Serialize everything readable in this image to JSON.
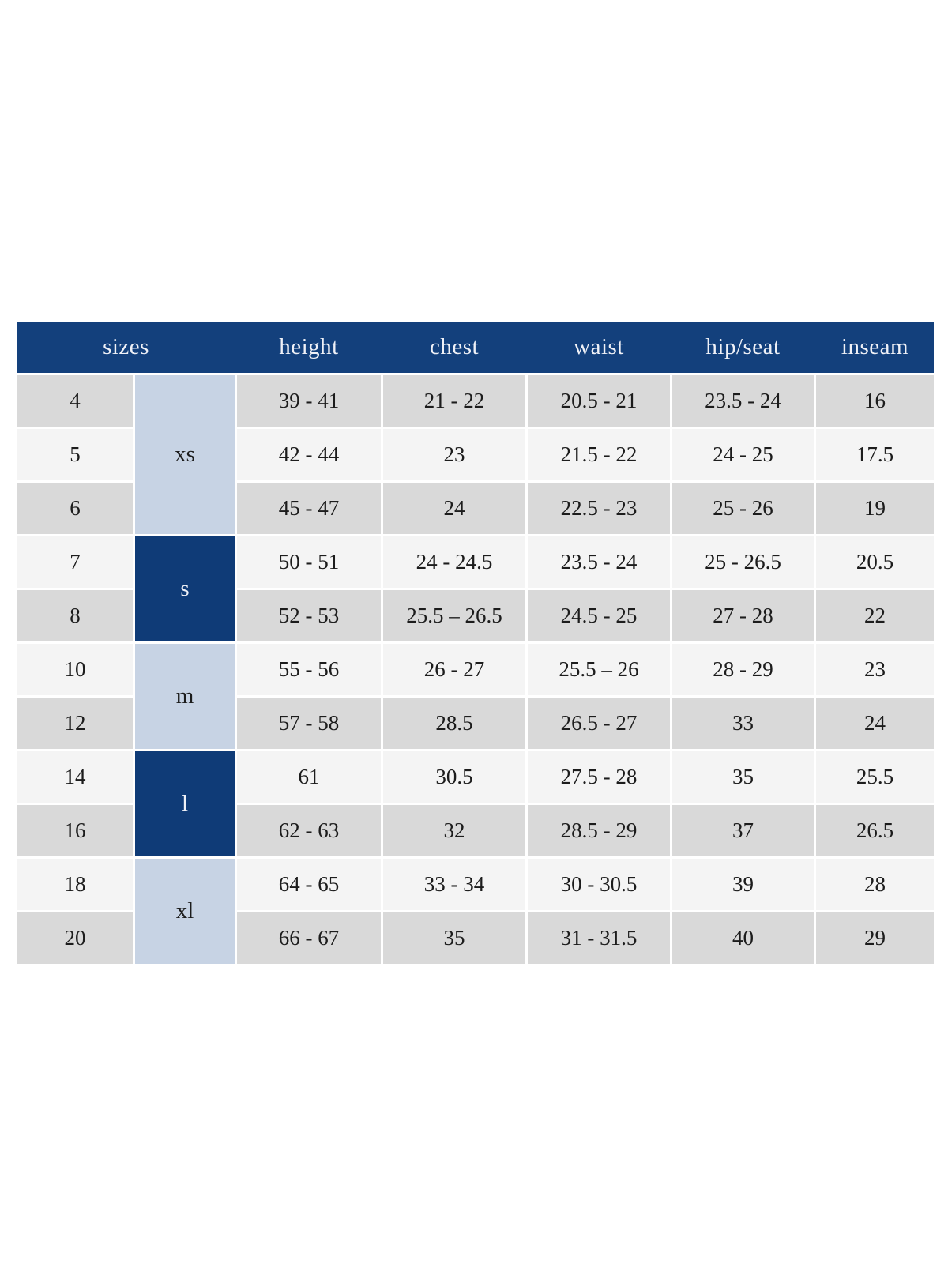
{
  "chart_data": {
    "type": "table",
    "title": "",
    "header": [
      "sizes",
      "height",
      "chest",
      "waist",
      "hip/seat",
      "inseam"
    ],
    "groups": [
      {
        "label": "xs",
        "span": 3,
        "variant": "light"
      },
      {
        "label": "s",
        "span": 2,
        "variant": "dark"
      },
      {
        "label": "m",
        "span": 2,
        "variant": "light"
      },
      {
        "label": "l",
        "span": 2,
        "variant": "dark"
      },
      {
        "label": "xl",
        "span": 2,
        "variant": "light"
      }
    ],
    "rows": [
      {
        "size": "4",
        "group": "xs",
        "height": "39 - 41",
        "chest": "21 - 22",
        "waist": "20.5 - 21",
        "hip_seat": "23.5 - 24",
        "inseam": "16"
      },
      {
        "size": "5",
        "group": "xs",
        "height": "42 - 44",
        "chest": "23",
        "waist": "21.5 - 22",
        "hip_seat": "24 - 25",
        "inseam": "17.5"
      },
      {
        "size": "6",
        "group": "xs",
        "height": "45 - 47",
        "chest": "24",
        "waist": "22.5 - 23",
        "hip_seat": "25 - 26",
        "inseam": "19"
      },
      {
        "size": "7",
        "group": "s",
        "height": "50 - 51",
        "chest": "24 - 24.5",
        "waist": "23.5 - 24",
        "hip_seat": "25 - 26.5",
        "inseam": "20.5"
      },
      {
        "size": "8",
        "group": "s",
        "height": "52 - 53",
        "chest": "25.5 – 26.5",
        "waist": "24.5 - 25",
        "hip_seat": "27 - 28",
        "inseam": "22"
      },
      {
        "size": "10",
        "group": "m",
        "height": "55 - 56",
        "chest": "26 - 27",
        "waist": "25.5 – 26",
        "hip_seat": "28 - 29",
        "inseam": "23"
      },
      {
        "size": "12",
        "group": "m",
        "height": "57 - 58",
        "chest": "28.5",
        "waist": "26.5 - 27",
        "hip_seat": "33",
        "inseam": "24"
      },
      {
        "size": "14",
        "group": "l",
        "height": "61",
        "chest": "30.5",
        "waist": "27.5 - 28",
        "hip_seat": "35",
        "inseam": "25.5"
      },
      {
        "size": "16",
        "group": "l",
        "height": "62 - 63",
        "chest": "32",
        "waist": "28.5 - 29",
        "hip_seat": "37",
        "inseam": "26.5"
      },
      {
        "size": "18",
        "group": "xl",
        "height": "64 - 65",
        "chest": "33 - 34",
        "waist": "30 - 30.5",
        "hip_seat": "39",
        "inseam": "28"
      },
      {
        "size": "20",
        "group": "xl",
        "height": "66 - 67",
        "chest": "35",
        "waist": "31 - 31.5",
        "hip_seat": "40",
        "inseam": "29"
      }
    ],
    "layout_hints": {
      "header_spans_size_and_group_columns": true,
      "row_striping": [
        "#d9d9d9",
        "#f4f4f4"
      ],
      "grid": "3px white gaps between cells, header bar continuous"
    }
  },
  "colors": {
    "header_bg": "#13407c",
    "header_text": "#eff1f7",
    "group_light_bg": "#c7d3e4",
    "group_dark_bg": "#0f3b77",
    "row_gray": "#d9d9d9",
    "row_light": "#f4f4f4",
    "cell_text": "#1c1c1c",
    "page_bg": "#ffffff"
  }
}
